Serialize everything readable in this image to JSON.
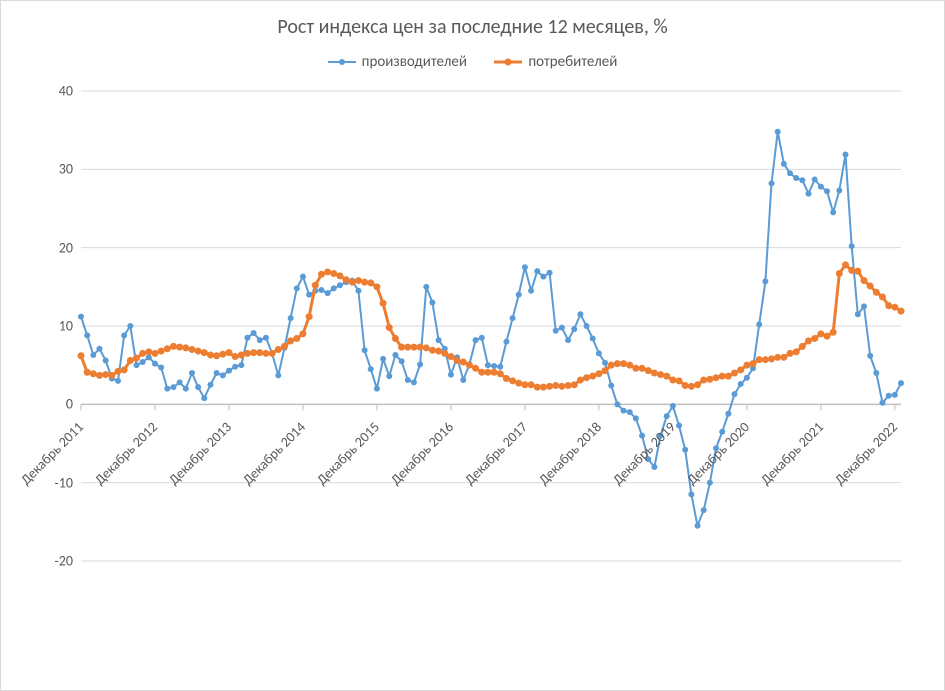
{
  "chart": {
    "type": "line",
    "title": "Рост индекса цен за последние 12 месяцев, %",
    "title_fontsize": 20,
    "title_color": "#595959",
    "background_color": "#ffffff",
    "border_color": "#d9d9d9",
    "grid_color": "#d9d9d9",
    "axis_line_color": "#bfbfbf",
    "axis_label_color": "#595959",
    "axis_fontsize": 14,
    "y": {
      "min": -20,
      "max": 40,
      "tick_step": 10,
      "ticks": [
        -20,
        -10,
        0,
        10,
        20,
        30,
        40
      ]
    },
    "x": {
      "n": 134,
      "tick_interval": 12,
      "tick_labels": [
        "Декабрь 2011",
        "Декабрь 2012",
        "Декабрь 2013",
        "Декабрь 2014",
        "Декабрь 2015",
        "Декабрь 2016",
        "Декабрь 2017",
        "Декабрь 2018",
        "Декабрь 2019",
        "Декабрь 2020",
        "Декабрь 2021",
        "Декабрь 2022"
      ],
      "label_rotation_deg": -45
    },
    "legend": {
      "fontsize": 15,
      "items": [
        {
          "label": "производителей",
          "color": "#5b9bd5",
          "marker_size": 6,
          "line_width": 2
        },
        {
          "label": "потребителей",
          "color": "#ed7d31",
          "marker_size": 7,
          "line_width": 3
        }
      ]
    },
    "series": [
      {
        "name": "производителей",
        "color": "#5b9bd5",
        "line_width": 2,
        "marker": {
          "type": "circle",
          "size": 6,
          "fill": "#5b9bd5"
        },
        "values": [
          11.2,
          8.8,
          6.3,
          7.1,
          5.6,
          3.3,
          3.0,
          8.8,
          10.0,
          5.0,
          5.4,
          6.0,
          5.2,
          4.7,
          2.0,
          2.2,
          2.8,
          2.0,
          4.0,
          2.2,
          0.8,
          2.5,
          4.0,
          3.7,
          4.3,
          4.8,
          5.0,
          8.5,
          9.1,
          8.2,
          8.5,
          6.5,
          3.7,
          7.2,
          11.0,
          14.8,
          16.3,
          14.0,
          14.5,
          14.6,
          14.2,
          14.8,
          15.2,
          15.6,
          15.8,
          14.5,
          6.9,
          4.5,
          2.0,
          5.8,
          3.6,
          6.3,
          5.5,
          3.1,
          2.8,
          5.1,
          15.0,
          13.0,
          8.2,
          7.1,
          3.8,
          6.0,
          3.1,
          5.1,
          8.2,
          8.5,
          5.0,
          4.9,
          4.8,
          8.0,
          11.0,
          14.0,
          17.5,
          14.5,
          17.0,
          16.3,
          16.8,
          9.4,
          9.8,
          8.2,
          9.6,
          11.5,
          10.0,
          8.4,
          6.5,
          5.3,
          2.4,
          0.0,
          -0.8,
          -1.0,
          -1.8,
          -4.0,
          -7.0,
          -8.0,
          -4.0,
          -1.5,
          -0.2,
          -2.7,
          -5.8,
          -11.5,
          -15.5,
          -13.5,
          -10.0,
          -5.6,
          -3.5,
          -1.2,
          1.3,
          2.6,
          3.4,
          4.6,
          10.2,
          15.7,
          28.2,
          34.8,
          30.7,
          29.5,
          28.9,
          28.6,
          26.9,
          28.7,
          27.8,
          27.2,
          24.5,
          27.3,
          31.9,
          20.2,
          11.5,
          12.5,
          6.2,
          4.0,
          0.2,
          1.1,
          1.2,
          2.7
        ]
      },
      {
        "name": "потребителей",
        "color": "#ed7d31",
        "line_width": 3,
        "marker": {
          "type": "circle",
          "size": 7,
          "fill": "#ed7d31"
        },
        "values": [
          6.2,
          4.1,
          3.9,
          3.7,
          3.8,
          3.7,
          4.2,
          4.4,
          5.6,
          5.9,
          6.5,
          6.7,
          6.5,
          6.8,
          7.1,
          7.4,
          7.3,
          7.2,
          7.0,
          6.8,
          6.6,
          6.3,
          6.2,
          6.4,
          6.6,
          6.1,
          6.3,
          6.5,
          6.6,
          6.6,
          6.5,
          6.5,
          7.0,
          7.4,
          8.1,
          8.4,
          9.0,
          11.2,
          15.2,
          16.6,
          16.9,
          16.7,
          16.4,
          15.9,
          15.6,
          15.8,
          15.6,
          15.5,
          15.0,
          12.9,
          9.8,
          8.4,
          7.3,
          7.3,
          7.3,
          7.3,
          7.2,
          6.9,
          6.8,
          6.5,
          6.1,
          5.6,
          5.4,
          5.0,
          4.6,
          4.1,
          4.1,
          4.1,
          3.9,
          3.3,
          3.0,
          2.7,
          2.5,
          2.5,
          2.2,
          2.2,
          2.3,
          2.4,
          2.3,
          2.4,
          2.5,
          3.1,
          3.4,
          3.6,
          3.9,
          4.3,
          5.0,
          5.2,
          5.2,
          5.0,
          4.6,
          4.6,
          4.3,
          4.0,
          3.8,
          3.6,
          3.1,
          3.0,
          2.4,
          2.3,
          2.5,
          3.1,
          3.2,
          3.4,
          3.6,
          3.6,
          4.0,
          4.4,
          5.0,
          5.2,
          5.7,
          5.7,
          5.8,
          6.0,
          6.0,
          6.5,
          6.7,
          7.4,
          8.1,
          8.4,
          9.0,
          8.7,
          9.2,
          16.7,
          17.8,
          17.1,
          17.0,
          15.8,
          15.1,
          14.3,
          13.7,
          12.6,
          12.4,
          11.9
        ]
      }
    ]
  }
}
